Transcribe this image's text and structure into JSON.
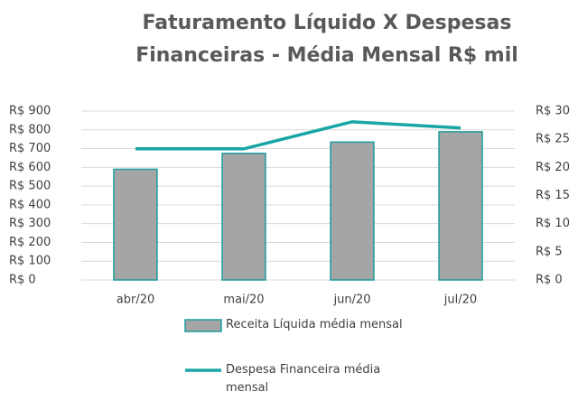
{
  "chart_data": {
    "type": "bar-line",
    "title": "Faturamento Líquido X Despesas Financeiras - Média Mensal R$ mil",
    "categories": [
      "abr/20",
      "mai/20",
      "jun/20",
      "jul/20"
    ],
    "series": [
      {
        "name": "Receita Líquida média mensal",
        "type": "bar",
        "color": "#a5a5a5",
        "edge_color": "#1f9e9e",
        "values": [
          590,
          675,
          735,
          790
        ]
      },
      {
        "name": "Despesa Financeira média mensal",
        "type": "line",
        "axis": "y2",
        "color": "#19a5a5",
        "values": [
          23.3,
          23.3,
          28.1,
          27.0
        ]
      }
    ],
    "ylim": [
      0,
      900
    ],
    "yticks": [
      {
        "value": 0,
        "label": "R$ 0"
      },
      {
        "value": 100,
        "label": "R$ 100"
      },
      {
        "value": 200,
        "label": "R$ 200"
      },
      {
        "value": 300,
        "label": "R$ 300"
      },
      {
        "value": 400,
        "label": "R$ 400"
      },
      {
        "value": 500,
        "label": "R$ 500"
      },
      {
        "value": 600,
        "label": "R$ 600"
      },
      {
        "value": 700,
        "label": "R$ 700"
      },
      {
        "value": 800,
        "label": "R$ 800"
      },
      {
        "value": 900,
        "label": "R$ 900"
      }
    ],
    "y2lim": [
      0,
      30
    ],
    "y2ticks": [
      {
        "value": 0,
        "label": "R$ 0"
      },
      {
        "value": 5,
        "label": "R$ 5"
      },
      {
        "value": 10,
        "label": "R$ 10"
      },
      {
        "value": 15,
        "label": "R$ 15"
      },
      {
        "value": 20,
        "label": "R$ 20"
      },
      {
        "value": 25,
        "label": "R$ 25"
      },
      {
        "value": 30,
        "label": "R$ 30"
      }
    ],
    "grid": true
  }
}
